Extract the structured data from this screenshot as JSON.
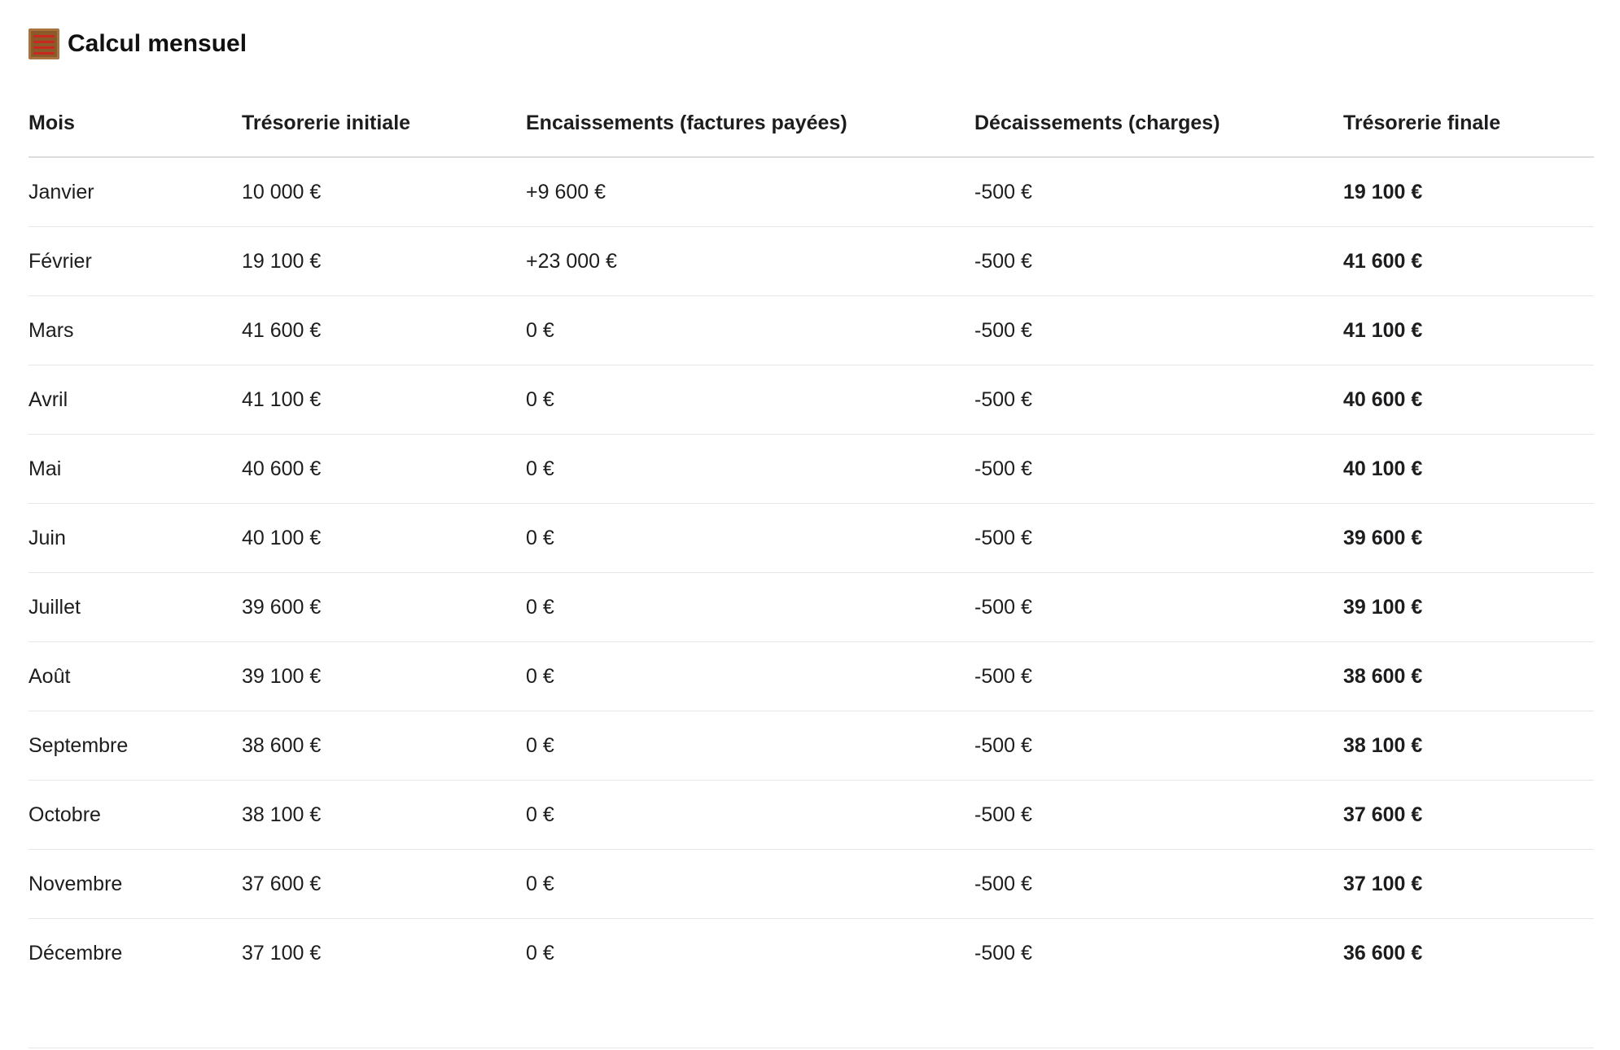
{
  "section": {
    "title": "Calcul mensuel",
    "icon": "abacus-icon"
  },
  "table": {
    "headers": [
      "Mois",
      "Trésorerie initiale",
      "Encaissements (factures payées)",
      "Décaissements (charges)",
      "Trésorerie finale"
    ],
    "rows": [
      [
        "Janvier",
        "10 000 €",
        "+9 600 €",
        "-500 €",
        "19 100 €"
      ],
      [
        "Février",
        "19 100 €",
        "+23 000 €",
        "-500 €",
        "41 600 €"
      ],
      [
        "Mars",
        "41 600 €",
        "0 €",
        "-500 €",
        "41 100 €"
      ],
      [
        "Avril",
        "41 100 €",
        "0 €",
        "-500 €",
        "40 600 €"
      ],
      [
        "Mai",
        "40 600 €",
        "0 €",
        "-500 €",
        "40 100 €"
      ],
      [
        "Juin",
        "40 100 €",
        "0 €",
        "-500 €",
        "39 600 €"
      ],
      [
        "Juillet",
        "39 600 €",
        "0 €",
        "-500 €",
        "39 100 €"
      ],
      [
        "Août",
        "39 100 €",
        "0 €",
        "-500 €",
        "38 600 €"
      ],
      [
        "Septembre",
        "38 600 €",
        "0 €",
        "-500 €",
        "38 100 €"
      ],
      [
        "Octobre",
        "38 100 €",
        "0 €",
        "-500 €",
        "37 600 €"
      ],
      [
        "Novembre",
        "37 600 €",
        "0 €",
        "-500 €",
        "37 100 €"
      ],
      [
        "Décembre",
        "37 100 €",
        "0 €",
        "-500 €",
        "36 600 €"
      ]
    ]
  }
}
